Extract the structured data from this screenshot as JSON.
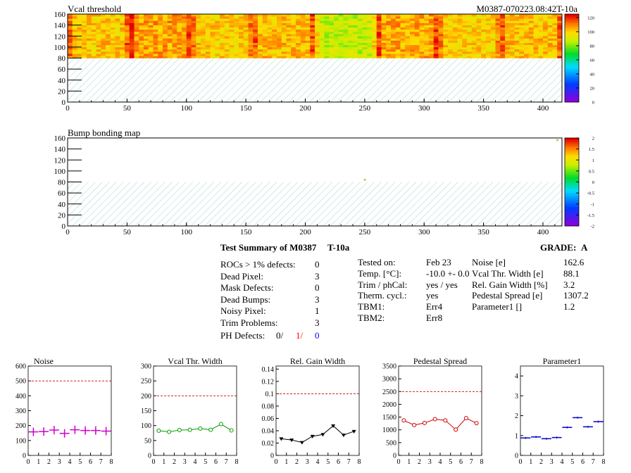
{
  "vcal_map": {
    "title": "Vcal threshold",
    "id_label": "M0387-070223.08:42T-10a",
    "x_ticks": [
      "0",
      "50",
      "100",
      "150",
      "200",
      "250",
      "300",
      "350",
      "400"
    ],
    "y_ticks": [
      "0",
      "20",
      "40",
      "60",
      "80",
      "100",
      "120",
      "140",
      "160"
    ],
    "z_ticks": [
      "0",
      "20",
      "40",
      "60",
      "80",
      "100",
      "120"
    ],
    "xlim": [
      0,
      416
    ],
    "ylim": [
      0,
      160
    ],
    "zlim": [
      0,
      125
    ],
    "bands": [
      {
        "x0": 0,
        "x1": 52,
        "mean": 102
      },
      {
        "x0": 52,
        "x1": 104,
        "mean": 107
      },
      {
        "x0": 104,
        "x1": 156,
        "mean": 101
      },
      {
        "x0": 156,
        "x1": 208,
        "mean": 104
      },
      {
        "x0": 208,
        "x1": 260,
        "mean": 88
      },
      {
        "x0": 260,
        "x1": 312,
        "mean": 106
      },
      {
        "x0": 312,
        "x1": 364,
        "mean": 100
      },
      {
        "x0": 364,
        "x1": 416,
        "mean": 103
      }
    ]
  },
  "bump_map": {
    "title": "Bump bonding map",
    "x_ticks": [
      "0",
      "50",
      "100",
      "150",
      "200",
      "250",
      "300",
      "350",
      "400"
    ],
    "y_ticks": [
      "0",
      "20",
      "40",
      "60",
      "80",
      "100",
      "120",
      "140",
      "160"
    ],
    "z_ticks": [
      "-2",
      "-1.5",
      "-1",
      "-0.5",
      "0",
      "0.5",
      "1",
      "1.5",
      "2"
    ],
    "xlim": [
      0,
      416
    ],
    "ylim": [
      0,
      160
    ],
    "zlim": [
      -2,
      2
    ],
    "dots": [
      {
        "x": 250,
        "y": 84
      },
      {
        "x": 412,
        "y": 156
      }
    ]
  },
  "summary": {
    "title": "Test Summary of M0387",
    "temp_tag": "T-10a",
    "grade_label": "GRADE:",
    "grade": "A",
    "col1": [
      {
        "label": "ROCs > 1% defects:",
        "value": "0"
      },
      {
        "label": "Dead Pixel:",
        "value": "3"
      },
      {
        "label": "Mask Defects:",
        "value": "0"
      },
      {
        "label": "Dead Bumps:",
        "value": "3"
      },
      {
        "label": "Noisy Pixel:",
        "value": "1"
      },
      {
        "label": "Trim Problems:",
        "value": "3"
      }
    ],
    "ph_label": "PH Defects:",
    "ph_values": [
      "0/",
      "1/",
      "0"
    ],
    "ph_colors": [
      "#000000",
      "#ff0000",
      "#0000ff"
    ],
    "col2": [
      {
        "label": "Tested on:",
        "value": "Feb 23"
      },
      {
        "label": "Temp. [°C]:",
        "value": "-10.0 +- 0.0"
      },
      {
        "label": "Trim / phCal:",
        "value": "yes / yes"
      },
      {
        "label": "Therm. cycl.:",
        "value": "yes"
      },
      {
        "label": "TBM1:",
        "value": "Err4"
      },
      {
        "label": "TBM2:",
        "value": "Err8"
      }
    ],
    "col3": [
      {
        "label": "Noise [e]",
        "value": "162.6"
      },
      {
        "label": "Vcal Thr. Width [e]",
        "value": "88.1"
      },
      {
        "label": "Rel. Gain Width [%]",
        "value": "3.2"
      },
      {
        "label": "Pedestal Spread [e]",
        "value": "1307.2"
      },
      {
        "label": "Parameter1 []",
        "value": "1.2"
      }
    ]
  },
  "chart_data": [
    {
      "type": "scatter",
      "title": "Noise",
      "color": "#cc00cc",
      "marker": "plus",
      "x": [
        0.5,
        1.5,
        2.5,
        3.5,
        4.5,
        5.5,
        6.5,
        7.5
      ],
      "values": [
        158,
        160,
        170,
        148,
        172,
        167,
        167,
        163
      ],
      "ylim": [
        0,
        600
      ],
      "yticks": [
        "0",
        "100",
        "200",
        "300",
        "400",
        "500",
        "600"
      ],
      "xticks": [
        "0",
        "1",
        "2",
        "3",
        "4",
        "5",
        "6",
        "7",
        "8"
      ],
      "threshold": 500
    },
    {
      "type": "line",
      "title": "Vcal Thr. Width",
      "color": "#009900",
      "marker": "circle",
      "x": [
        0.5,
        1.5,
        2.5,
        3.5,
        4.5,
        5.5,
        6.5,
        7.5
      ],
      "values": [
        83,
        79,
        85,
        86,
        90,
        86,
        105,
        84
      ],
      "ylim": [
        0,
        300
      ],
      "yticks": [
        "0",
        "50",
        "100",
        "150",
        "200",
        "250",
        "300"
      ],
      "xticks": [
        "0",
        "1",
        "2",
        "3",
        "4",
        "5",
        "6",
        "7",
        "8"
      ],
      "threshold": 200
    },
    {
      "type": "line",
      "title": "Rel. Gain Width",
      "color": "#000000",
      "marker": "triangle",
      "x": [
        0.5,
        1.5,
        2.5,
        3.5,
        4.5,
        5.5,
        6.5,
        7.5
      ],
      "values": [
        0.027,
        0.025,
        0.021,
        0.031,
        0.034,
        0.048,
        0.033,
        0.039
      ],
      "ylim": [
        0,
        0.145
      ],
      "yticks": [
        "0",
        "0.02",
        "0.04",
        "0.06",
        "0.08",
        "0.1",
        "0.12",
        "0.14"
      ],
      "xticks": [
        "0",
        "1",
        "2",
        "3",
        "4",
        "5",
        "6",
        "7",
        "8"
      ],
      "threshold": 0.1
    },
    {
      "type": "line",
      "title": "Pedestal Spread",
      "color": "#cc0000",
      "marker": "circle",
      "x": [
        0.5,
        1.5,
        2.5,
        3.5,
        4.5,
        5.5,
        6.5,
        7.5
      ],
      "values": [
        1370,
        1190,
        1270,
        1420,
        1370,
        1010,
        1460,
        1260
      ],
      "ylim": [
        0,
        3500
      ],
      "yticks": [
        "0",
        "500",
        "1000",
        "1500",
        "2000",
        "2500",
        "3000",
        "3500"
      ],
      "xticks": [
        "0",
        "1",
        "2",
        "3",
        "4",
        "5",
        "6",
        "7",
        "8"
      ],
      "threshold": 2500
    },
    {
      "type": "scatter",
      "title": "Parameter1",
      "color": "#0000cc",
      "marker": "hbar",
      "x": [
        0.5,
        1.5,
        2.5,
        3.5,
        4.5,
        5.5,
        6.5,
        7.5
      ],
      "values": [
        0.88,
        0.93,
        0.84,
        0.9,
        1.41,
        1.9,
        1.44,
        1.7
      ],
      "ylim": [
        0,
        4.5
      ],
      "yticks": [
        "0",
        "1",
        "2",
        "3",
        "4"
      ],
      "xticks": [
        "0",
        "1",
        "2",
        "3",
        "4",
        "5",
        "6",
        "7",
        "8"
      ],
      "threshold": null
    }
  ]
}
